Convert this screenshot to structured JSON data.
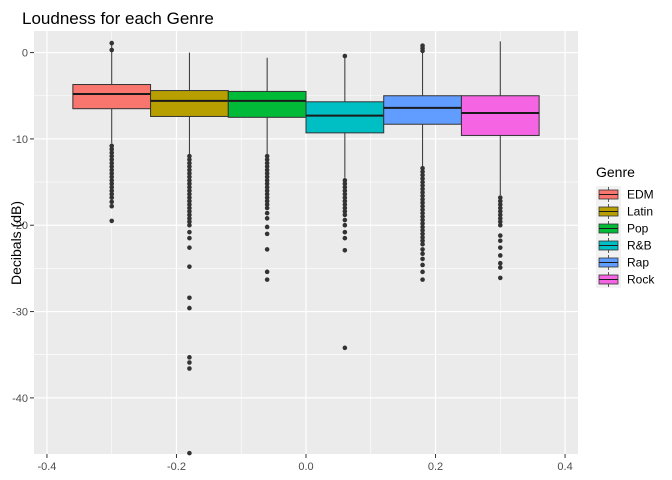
{
  "chart_data": {
    "type": "boxplot",
    "title": "Loudness for each Genre",
    "xlabel": "",
    "ylabel": "Decibals (dB)",
    "xlim": [
      -0.42,
      0.42
    ],
    "ylim": [
      -46.5,
      2.5
    ],
    "x_ticks": [
      -0.4,
      -0.2,
      0.0,
      0.2,
      0.4
    ],
    "x_tick_labels": [
      "-0.4",
      "-0.2",
      "0.0",
      "0.2",
      "0.4"
    ],
    "y_ticks": [
      0,
      -10,
      -20,
      -30,
      -40
    ],
    "y_tick_labels": [
      "0",
      "-10",
      "-20",
      "-30",
      "-40"
    ],
    "grid": true,
    "legend": {
      "title": "Genre",
      "position": "right"
    },
    "box_width": 0.12,
    "series": [
      {
        "name": "EDM",
        "color": "#F8766D",
        "center": -0.3,
        "whisker_low": -10.5,
        "q1": -6.5,
        "median": -4.8,
        "q3": -3.7,
        "whisker_high": 1.1,
        "outliers": [
          1.1,
          0.3,
          -10.8,
          -11.2,
          -11.6,
          -12.0,
          -12.4,
          -12.8,
          -13.2,
          -13.6,
          -14.0,
          -14.4,
          -14.8,
          -15.2,
          -15.6,
          -16.0,
          -16.4,
          -16.8,
          -17.3,
          -17.8,
          -19.5
        ]
      },
      {
        "name": "Latin",
        "color": "#B79F00",
        "center": -0.18,
        "whisker_low": -11.8,
        "q1": -7.4,
        "median": -5.6,
        "q3": -4.4,
        "whisker_high": 0.0,
        "outliers": [
          -12.0,
          -12.4,
          -12.8,
          -13.2,
          -13.6,
          -14.0,
          -14.4,
          -14.8,
          -15.2,
          -15.6,
          -16.0,
          -16.4,
          -16.8,
          -17.2,
          -17.6,
          -18.0,
          -18.4,
          -18.8,
          -19.2,
          -19.6,
          -20.0,
          -20.8,
          -21.5,
          -22.6,
          -24.8,
          -28.4,
          -29.6,
          -35.3,
          -35.9,
          -36.6,
          -46.4
        ]
      },
      {
        "name": "Pop",
        "color": "#00BA38",
        "center": -0.06,
        "whisker_low": -11.8,
        "q1": -7.5,
        "median": -5.6,
        "q3": -4.5,
        "whisker_high": -0.6,
        "outliers": [
          -12.0,
          -12.4,
          -12.8,
          -13.2,
          -13.6,
          -14.0,
          -14.4,
          -14.8,
          -15.2,
          -15.6,
          -16.0,
          -16.4,
          -16.8,
          -17.2,
          -17.6,
          -18.0,
          -18.6,
          -19.2,
          -20.2,
          -21.0,
          -22.8,
          -25.4,
          -26.3
        ]
      },
      {
        "name": "R&B",
        "color": "#00BFC4",
        "center": 0.06,
        "whisker_low": -14.5,
        "q1": -9.3,
        "median": -7.3,
        "q3": -5.7,
        "whisker_high": -0.6,
        "outliers": [
          -0.4,
          -14.8,
          -15.2,
          -15.6,
          -16.0,
          -16.4,
          -16.8,
          -17.2,
          -17.6,
          -18.0,
          -18.4,
          -18.8,
          -19.4,
          -20.0,
          -20.8,
          -21.5,
          -22.9,
          -34.2
        ]
      },
      {
        "name": "Rap",
        "color": "#619CFF",
        "center": 0.18,
        "whisker_low": -13.2,
        "q1": -8.3,
        "median": -6.4,
        "q3": -5.0,
        "whisker_high": 0.0,
        "outliers": [
          0.8,
          0.5,
          0.2,
          -13.4,
          -13.8,
          -14.2,
          -14.6,
          -15.0,
          -15.4,
          -15.8,
          -16.2,
          -16.6,
          -17.0,
          -17.4,
          -17.8,
          -18.2,
          -18.6,
          -19.0,
          -19.4,
          -19.8,
          -20.2,
          -20.6,
          -21.0,
          -21.4,
          -21.8,
          -22.2,
          -22.8,
          -23.3,
          -23.9,
          -24.6,
          -25.4,
          -26.3
        ]
      },
      {
        "name": "Rock",
        "color": "#F564E3",
        "center": 0.3,
        "whisker_low": -16.5,
        "q1": -9.6,
        "median": -7.0,
        "q3": -5.0,
        "whisker_high": 1.3,
        "outliers": [
          -16.8,
          -17.2,
          -17.6,
          -18.0,
          -18.4,
          -18.8,
          -19.2,
          -19.6,
          -20.0,
          -21.2,
          -21.8,
          -22.6,
          -23.5,
          -24.4,
          -24.9,
          -26.1
        ]
      }
    ]
  }
}
